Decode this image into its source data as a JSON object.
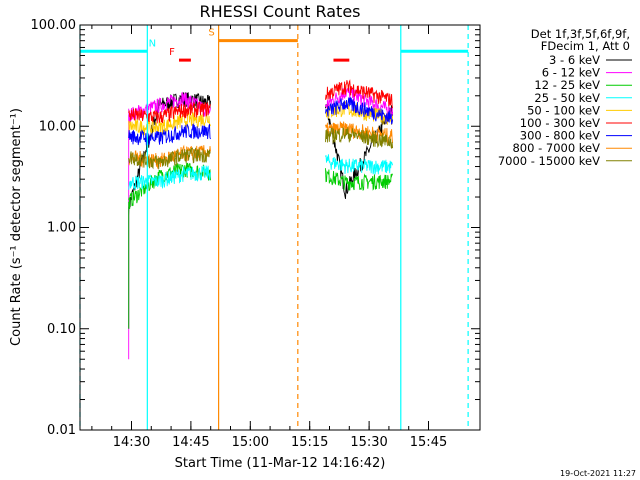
{
  "chart_data": {
    "type": "line",
    "title": "RHESSI Count Rates",
    "xlabel": "Start Time (11-Mar-12 14:16:42)",
    "ylabel": "Count Rate (s⁻¹ detector segment⁻¹)",
    "yscale": "log",
    "ylim": [
      0.01,
      100
    ],
    "xlim": [
      "14:17",
      "15:58"
    ],
    "grid": false,
    "legend_position": "top-right",
    "legend_header": [
      "Det 1f,3f,5f,6f,9f,",
      "FDecim 1, Att 0"
    ],
    "footer_date": "19-Oct-2021 11:27",
    "x_tick_labels": [
      "14:30",
      "14:45",
      "15:00",
      "15:15",
      "15:30",
      "15:45"
    ],
    "x_ticks_minutes": [
      30,
      45,
      60,
      75,
      90,
      105
    ],
    "y_tick_labels": [
      "0.01",
      "0.10",
      "1.00",
      "10.00",
      "100.00"
    ],
    "y_ticks": [
      0.01,
      0.1,
      1,
      10,
      100
    ],
    "data_intervals": [
      {
        "start": "14:29",
        "end": "14:50"
      },
      {
        "start": "15:19",
        "end": "15:36"
      }
    ],
    "series": [
      {
        "name": "3 - 6 keV",
        "color": "#000000",
        "levels": [
          1.6,
          19,
          17,
          2.3,
          15
        ]
      },
      {
        "name": "6 - 12 keV",
        "color": "#ff00ff",
        "levels": [
          13,
          19,
          14,
          22,
          14
        ]
      },
      {
        "name": "12 - 25 keV",
        "color": "#00cc00",
        "levels": [
          1.8,
          3.8,
          3.5,
          2.8,
          2.9
        ]
      },
      {
        "name": "25 - 50 keV",
        "color": "#00ffff",
        "levels": [
          2.8,
          3.4,
          3.5,
          4.1,
          4.0
        ]
      },
      {
        "name": "50 - 100 keV",
        "color": "#ffcc00",
        "levels": [
          10,
          11.5,
          12,
          15,
          12
        ]
      },
      {
        "name": "100 - 300 keV",
        "color": "#ff0000",
        "levels": [
          13,
          14.5,
          15,
          25,
          18
        ]
      },
      {
        "name": "300 - 800 keV",
        "color": "#0000ff",
        "levels": [
          8,
          9,
          9,
          17,
          12
        ]
      },
      {
        "name": "800 - 7000 keV",
        "color": "#ff8800",
        "levels": [
          5,
          5.4,
          5.6,
          9.5,
          8
        ]
      },
      {
        "name": "7000 - 15000 keV",
        "color": "#808000",
        "levels": [
          5,
          5.2,
          5.3,
          8.5,
          7
        ]
      }
    ],
    "annotations": [
      {
        "label": "N",
        "color": "#00ffff",
        "type": "night",
        "intervals": [
          [
            "14:17",
            "14:34"
          ],
          [
            "15:38",
            "15:55"
          ]
        ],
        "level": 55
      },
      {
        "label": "S",
        "color": "#ff8800",
        "type": "saa",
        "intervals": [
          [
            "14:52",
            "15:12"
          ]
        ],
        "level": 70
      },
      {
        "label": "F",
        "color": "#ff0000",
        "type": "flare",
        "intervals": [
          [
            "14:42",
            "14:45"
          ],
          [
            "15:21",
            "15:25"
          ]
        ],
        "level": 45
      }
    ]
  }
}
